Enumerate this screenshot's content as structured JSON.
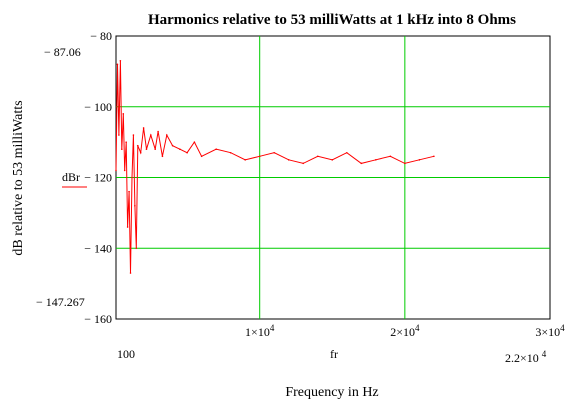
{
  "chart_data": {
    "type": "line",
    "title": "Harmonics relative to 53 milliWatts at 1 kHz into 8 Ohms",
    "xlabel": "Frequency in Hz",
    "ylabel": "dB relative to 53 milliWatts",
    "x_variable_label": "fr",
    "y_variable_label": "dBr",
    "xlim": [
      100,
      30000
    ],
    "ylim": [
      -160,
      -80
    ],
    "x_ticks": [
      {
        "value": 10000,
        "mantissa": "1×10",
        "exp": "4"
      },
      {
        "value": 20000,
        "mantissa": "2×10",
        "exp": "4"
      },
      {
        "value": 30000,
        "mantissa": "3×10",
        "exp": "4"
      }
    ],
    "y_ticks": [
      {
        "value": -80,
        "label": "− 80"
      },
      {
        "value": -100,
        "label": "− 100"
      },
      {
        "value": -120,
        "label": "− 120"
      },
      {
        "value": -140,
        "label": "− 140"
      },
      {
        "value": -160,
        "label": "− 160"
      }
    ],
    "x_min_label": "100",
    "x_marker": {
      "mantissa": "2.2×10",
      "exp": "4"
    },
    "y_max_marker": "− 87.06",
    "y_min_marker": "− 147.267",
    "grid": true,
    "series": [
      {
        "color": "#ff0000",
        "x": [
          100,
          200,
          300,
          400,
          500,
          600,
          700,
          800,
          900,
          1000,
          1100,
          1200,
          1300,
          1400,
          1500,
          1600,
          1800,
          2000,
          2200,
          2500,
          2800,
          3000,
          3300,
          3600,
          4000,
          4500,
          5000,
          5500,
          6000,
          7000,
          8000,
          9000,
          10000,
          11000,
          12000,
          13000,
          14000,
          15000,
          16000,
          17000,
          18000,
          19000,
          20000,
          21000,
          22000
        ],
        "y": [
          -118,
          -88,
          -108,
          -87,
          -112,
          -102,
          -118,
          -110,
          -134,
          -124,
          -147,
          -120,
          -108,
          -128,
          -140,
          -111,
          -113,
          -106,
          -112,
          -108,
          -112,
          -107,
          -114,
          -108,
          -111,
          -112,
          -113,
          -110,
          -114,
          -112,
          -113,
          -115,
          -114,
          -113,
          -115,
          -116,
          -114,
          -115,
          -113,
          -116,
          -115,
          -114,
          -116,
          -115,
          -114
        ]
      }
    ]
  }
}
